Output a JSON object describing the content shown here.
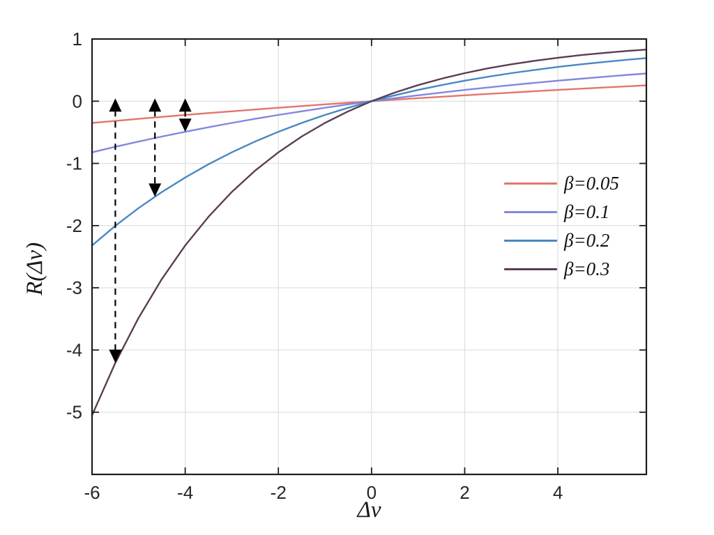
{
  "figure": {
    "background": "#ffffff",
    "axis_color": "#1c1c1c",
    "grid_color": "#e2e2e2",
    "tick_label_color": "#262626",
    "annotation_color": "#000000"
  },
  "chart_data": {
    "type": "line",
    "title": "",
    "xlabel": "Δv",
    "ylabel": "R(Δv)",
    "xlim": [
      -6,
      5.9
    ],
    "ylim": [
      -6,
      1
    ],
    "xticks": [
      -6,
      -4,
      -2,
      0,
      2,
      4
    ],
    "yticks": [
      1,
      0,
      -1,
      -2,
      -3,
      -4,
      -5
    ],
    "grid": true,
    "legend_position": "middle-right",
    "legend_frame": false,
    "function": "R(dv) = 1 - exp(-beta * dv)",
    "x": [
      -6,
      -5.5,
      -5,
      -4.5,
      -4,
      -3.5,
      -3,
      -2.5,
      -2,
      -1.5,
      -1,
      -0.5,
      0,
      0.5,
      1,
      1.5,
      2,
      2.5,
      3,
      3.5,
      4,
      4.5,
      5,
      5.5,
      5.9
    ],
    "series": [
      {
        "id": "beta-0.05",
        "name": "β=0.05",
        "beta": 0.05,
        "color": "#e2756c",
        "values": [
          -0.35,
          -0.317,
          -0.284,
          -0.252,
          -0.221,
          -0.191,
          -0.162,
          -0.133,
          -0.105,
          -0.078,
          -0.051,
          -0.025,
          0,
          0.025,
          0.049,
          0.072,
          0.095,
          0.118,
          0.139,
          0.161,
          0.181,
          0.202,
          0.221,
          0.24,
          0.255
        ]
      },
      {
        "id": "beta-0.1",
        "name": "β=0.1",
        "beta": 0.1,
        "color": "#8287de",
        "values": [
          -0.822,
          -0.733,
          -0.649,
          -0.568,
          -0.492,
          -0.419,
          -0.35,
          -0.284,
          -0.221,
          -0.162,
          -0.105,
          -0.051,
          0,
          0.049,
          0.095,
          0.139,
          0.181,
          0.221,
          0.259,
          0.295,
          0.33,
          0.362,
          0.393,
          0.423,
          0.446
        ]
      },
      {
        "id": "beta-0.2",
        "name": "β=0.2",
        "beta": 0.2,
        "color": "#4787c3",
        "values": [
          -2.32,
          -2.004,
          -1.718,
          -1.46,
          -1.226,
          -1.014,
          -0.822,
          -0.649,
          -0.492,
          -0.35,
          -0.221,
          -0.105,
          0,
          0.095,
          0.181,
          0.259,
          0.33,
          0.393,
          0.451,
          0.503,
          0.551,
          0.593,
          0.632,
          0.667,
          0.693
        ]
      },
      {
        "id": "beta-0.3",
        "name": "β=0.3",
        "beta": 0.3,
        "color": "#5a3d54",
        "values": [
          -5.05,
          -4.207,
          -3.482,
          -2.857,
          -2.32,
          -1.858,
          -1.46,
          -1.117,
          -0.822,
          -0.568,
          -0.35,
          -0.162,
          0,
          0.139,
          0.259,
          0.362,
          0.451,
          0.528,
          0.593,
          0.65,
          0.699,
          0.741,
          0.777,
          0.808,
          0.83
        ]
      }
    ],
    "annotations": [
      {
        "type": "dashed-double-arrow",
        "x": -5.5,
        "from": 0,
        "to": -4.207
      },
      {
        "type": "dashed-double-arrow",
        "x": -4.65,
        "from": 0,
        "to": -1.535
      },
      {
        "type": "dashed-double-arrow",
        "x": -4.0,
        "from": 0,
        "to": -0.492
      }
    ]
  }
}
